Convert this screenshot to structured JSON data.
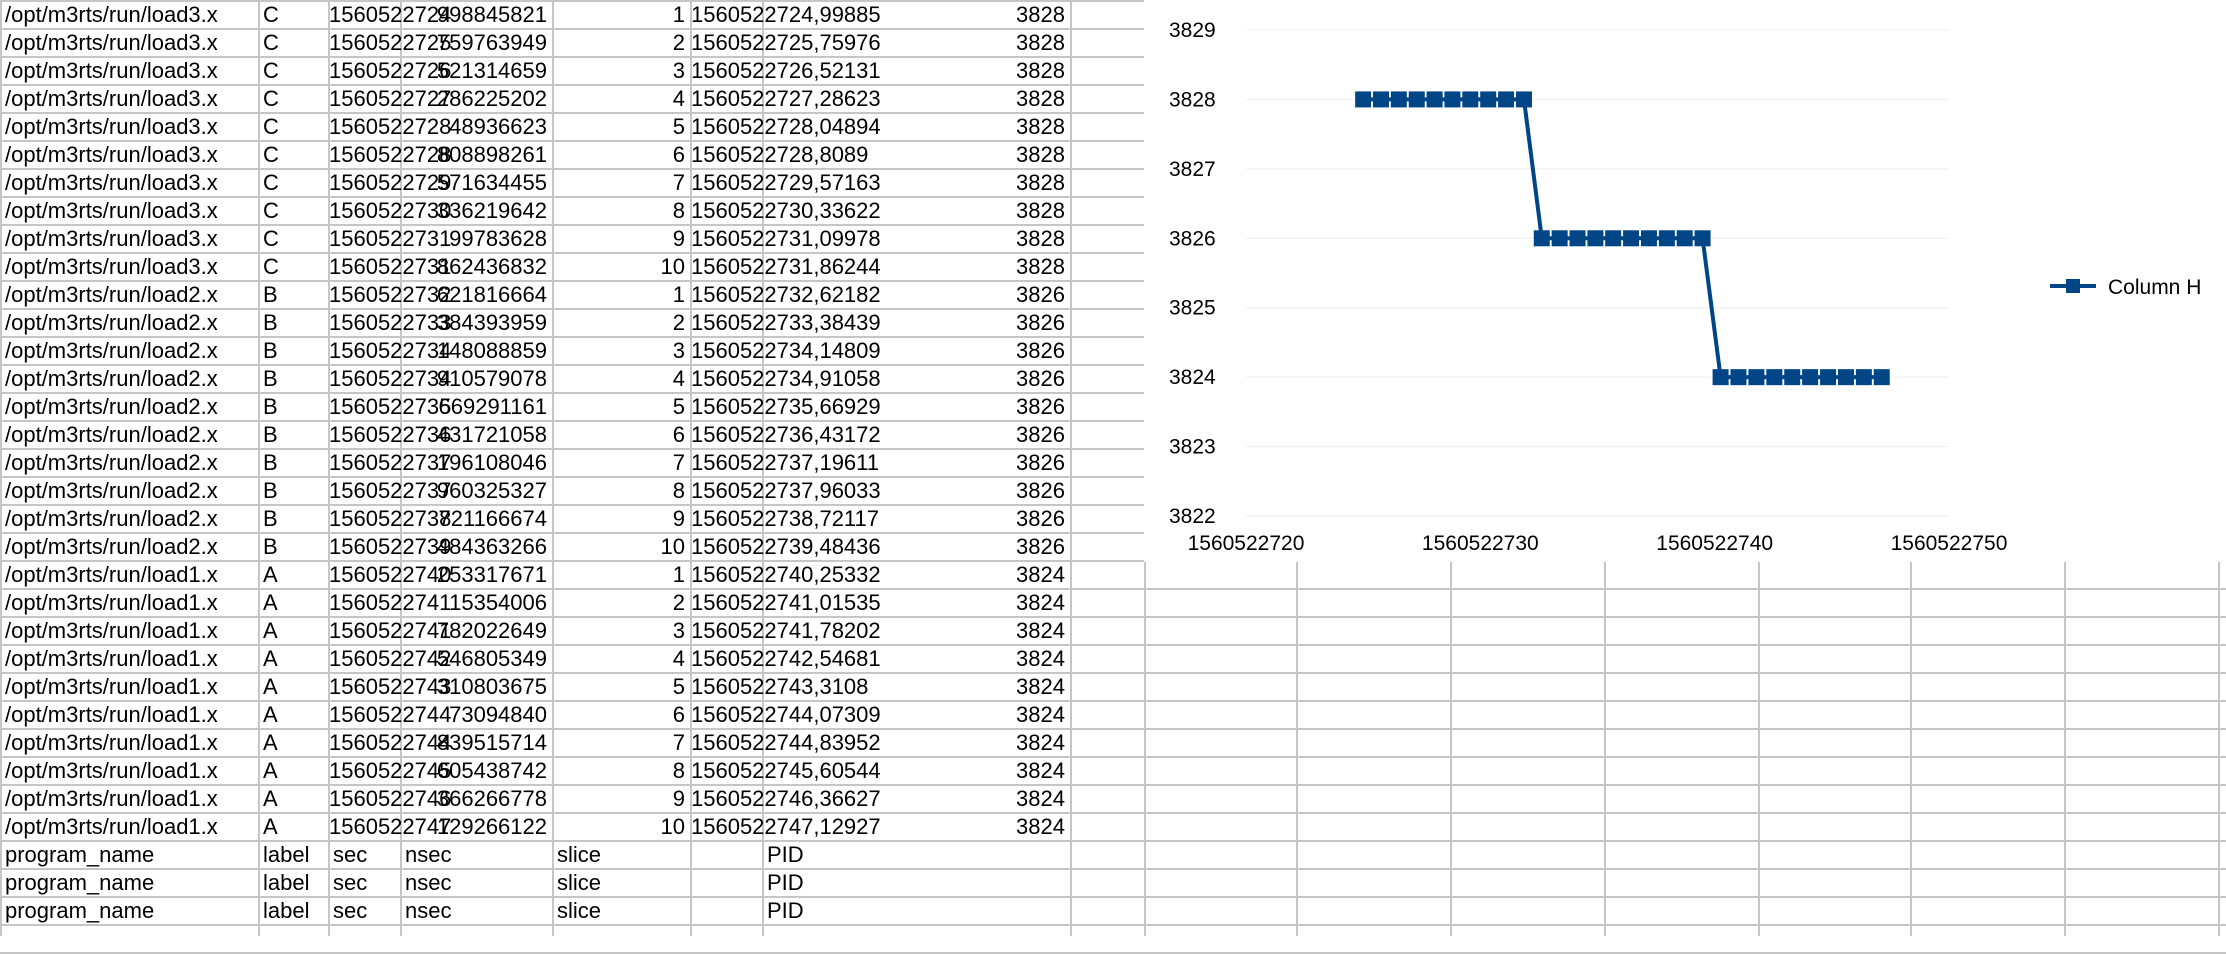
{
  "sheet": {
    "rows": [
      [
        "/opt/m3rts/run/load3.x",
        "C",
        "1560522724",
        "998845821",
        "1",
        "1560522724,99885",
        "3828"
      ],
      [
        "/opt/m3rts/run/load3.x",
        "C",
        "1560522725",
        "759763949",
        "2",
        "1560522725,75976",
        "3828"
      ],
      [
        "/opt/m3rts/run/load3.x",
        "C",
        "1560522726",
        "521314659",
        "3",
        "1560522726,52131",
        "3828"
      ],
      [
        "/opt/m3rts/run/load3.x",
        "C",
        "1560522727",
        "286225202",
        "4",
        "1560522727,28623",
        "3828"
      ],
      [
        "/opt/m3rts/run/load3.x",
        "C",
        "1560522728",
        "48936623",
        "5",
        "1560522728,04894",
        "3828"
      ],
      [
        "/opt/m3rts/run/load3.x",
        "C",
        "1560522728",
        "808898261",
        "6",
        "1560522728,8089",
        "3828"
      ],
      [
        "/opt/m3rts/run/load3.x",
        "C",
        "1560522729",
        "571634455",
        "7",
        "1560522729,57163",
        "3828"
      ],
      [
        "/opt/m3rts/run/load3.x",
        "C",
        "1560522730",
        "336219642",
        "8",
        "1560522730,33622",
        "3828"
      ],
      [
        "/opt/m3rts/run/load3.x",
        "C",
        "1560522731",
        "99783628",
        "9",
        "1560522731,09978",
        "3828"
      ],
      [
        "/opt/m3rts/run/load3.x",
        "C",
        "1560522731",
        "862436832",
        "10",
        "1560522731,86244",
        "3828"
      ],
      [
        "/opt/m3rts/run/load2.x",
        "B",
        "1560522732",
        "621816664",
        "1",
        "1560522732,62182",
        "3826"
      ],
      [
        "/opt/m3rts/run/load2.x",
        "B",
        "1560522733",
        "384393959",
        "2",
        "1560522733,38439",
        "3826"
      ],
      [
        "/opt/m3rts/run/load2.x",
        "B",
        "1560522734",
        "148088859",
        "3",
        "1560522734,14809",
        "3826"
      ],
      [
        "/opt/m3rts/run/load2.x",
        "B",
        "1560522734",
        "910579078",
        "4",
        "1560522734,91058",
        "3826"
      ],
      [
        "/opt/m3rts/run/load2.x",
        "B",
        "1560522735",
        "669291161",
        "5",
        "1560522735,66929",
        "3826"
      ],
      [
        "/opt/m3rts/run/load2.x",
        "B",
        "1560522736",
        "431721058",
        "6",
        "1560522736,43172",
        "3826"
      ],
      [
        "/opt/m3rts/run/load2.x",
        "B",
        "1560522737",
        "196108046",
        "7",
        "1560522737,19611",
        "3826"
      ],
      [
        "/opt/m3rts/run/load2.x",
        "B",
        "1560522737",
        "960325327",
        "8",
        "1560522737,96033",
        "3826"
      ],
      [
        "/opt/m3rts/run/load2.x",
        "B",
        "1560522738",
        "721166674",
        "9",
        "1560522738,72117",
        "3826"
      ],
      [
        "/opt/m3rts/run/load2.x",
        "B",
        "1560522739",
        "484363266",
        "10",
        "1560522739,48436",
        "3826"
      ],
      [
        "/opt/m3rts/run/load1.x",
        "A",
        "1560522740",
        "253317671",
        "1",
        "1560522740,25332",
        "3824"
      ],
      [
        "/opt/m3rts/run/load1.x",
        "A",
        "1560522741",
        "15354006",
        "2",
        "1560522741,01535",
        "3824"
      ],
      [
        "/opt/m3rts/run/load1.x",
        "A",
        "1560522741",
        "782022649",
        "3",
        "1560522741,78202",
        "3824"
      ],
      [
        "/opt/m3rts/run/load1.x",
        "A",
        "1560522742",
        "546805349",
        "4",
        "1560522742,54681",
        "3824"
      ],
      [
        "/opt/m3rts/run/load1.x",
        "A",
        "1560522743",
        "310803675",
        "5",
        "1560522743,3108",
        "3824"
      ],
      [
        "/opt/m3rts/run/load1.x",
        "A",
        "1560522744",
        "73094840",
        "6",
        "1560522744,07309",
        "3824"
      ],
      [
        "/opt/m3rts/run/load1.x",
        "A",
        "1560522744",
        "839515714",
        "7",
        "1560522744,83952",
        "3824"
      ],
      [
        "/opt/m3rts/run/load1.x",
        "A",
        "1560522745",
        "605438742",
        "8",
        "1560522745,60544",
        "3824"
      ],
      [
        "/opt/m3rts/run/load1.x",
        "A",
        "1560522746",
        "366266778",
        "9",
        "1560522746,36627",
        "3824"
      ],
      [
        "/opt/m3rts/run/load1.x",
        "A",
        "1560522747",
        "129266122",
        "10",
        "1560522747,12927",
        "3824"
      ],
      [
        "program_name",
        "label",
        "sec",
        "nsec",
        "slice",
        "",
        "PID"
      ],
      [
        "program_name",
        "label",
        "sec",
        "nsec",
        "slice",
        "",
        "PID"
      ],
      [
        "program_name",
        "label",
        "sec",
        "nsec",
        "slice",
        "",
        "PID"
      ]
    ]
  },
  "chart_data": {
    "type": "line",
    "title": "",
    "xlabel": "",
    "ylabel": "",
    "xlim": [
      1560522720,
      1560522750
    ],
    "ylim": [
      3822,
      3829
    ],
    "xticks": [
      "1560522720",
      "1560522730",
      "1560522740",
      "1560522750"
    ],
    "yticks": [
      "3822",
      "3823",
      "3824",
      "3825",
      "3826",
      "3827",
      "3828",
      "3829"
    ],
    "grid": true,
    "legend_position": "right",
    "series": [
      {
        "name": "Column H",
        "color": "#004586",
        "marker": "square",
        "x": [
          1560522724.99885,
          1560522725.75976,
          1560522726.52131,
          1560522727.28623,
          1560522728.04894,
          1560522728.8089,
          1560522729.57163,
          1560522730.33622,
          1560522731.09978,
          1560522731.86244,
          1560522732.62182,
          1560522733.38439,
          1560522734.14809,
          1560522734.91058,
          1560522735.66929,
          1560522736.43172,
          1560522737.19611,
          1560522737.96033,
          1560522738.72117,
          1560522739.48436,
          1560522740.25332,
          1560522741.01535,
          1560522741.78202,
          1560522742.54681,
          1560522743.3108,
          1560522744.07309,
          1560522744.83952,
          1560522745.60544,
          1560522746.36627,
          1560522747.12927
        ],
        "values": [
          3828,
          3828,
          3828,
          3828,
          3828,
          3828,
          3828,
          3828,
          3828,
          3828,
          3826,
          3826,
          3826,
          3826,
          3826,
          3826,
          3826,
          3826,
          3826,
          3826,
          3824,
          3824,
          3824,
          3824,
          3824,
          3824,
          3824,
          3824,
          3824,
          3824
        ]
      }
    ]
  }
}
